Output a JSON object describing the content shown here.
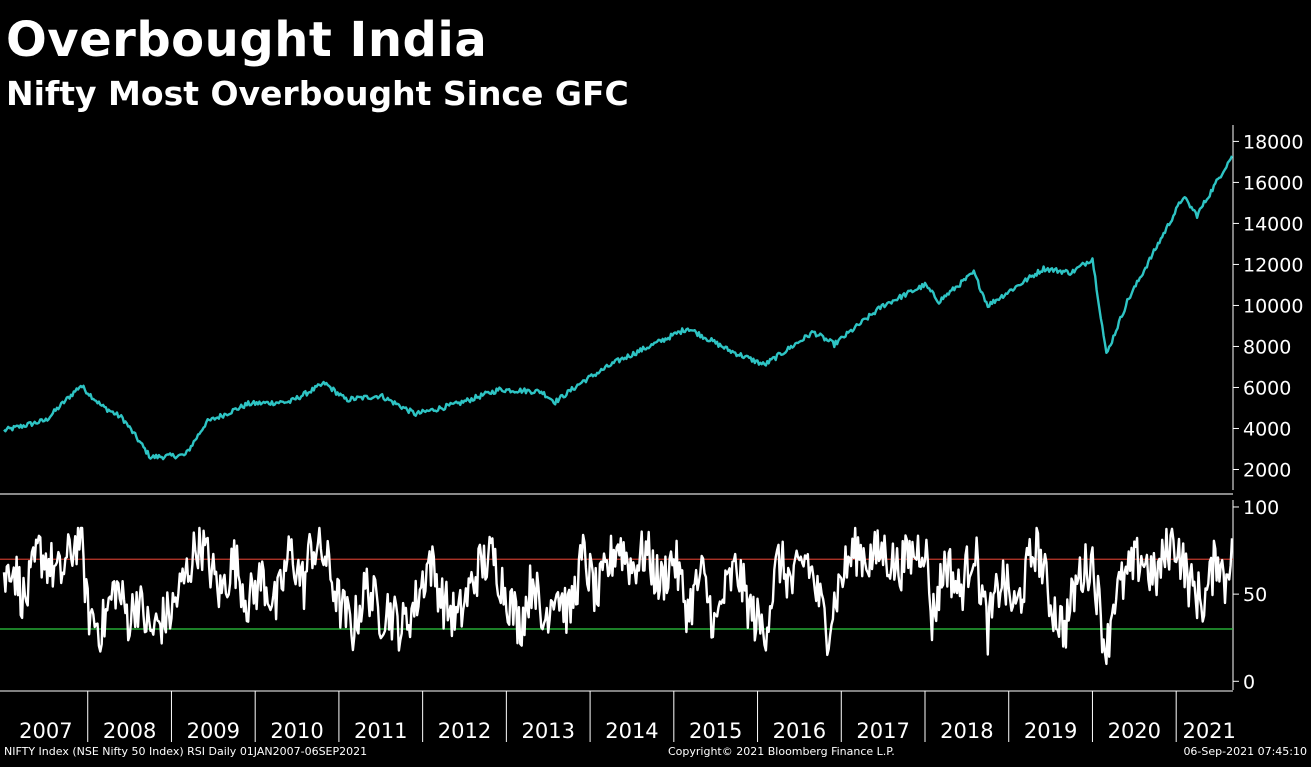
{
  "title": "Overbought India",
  "subtitle": "Nifty Most Overbought Since GFC",
  "footer": {
    "source": "NIFTY Index (NSE Nifty 50 Index) RSI  Daily 01JAN2007-06SEP2021",
    "copyright": "Copyright© 2021 Bloomberg Finance L.P.",
    "timestamp": "06-Sep-2021 07:45:10"
  },
  "colors": {
    "background": "#000000",
    "price_line": "#2ec4c4",
    "rsi_line": "#ffffff",
    "overbought_line": "#c0392b",
    "oversold_line": "#2ecc40",
    "axis": "#ffffff"
  },
  "chart_data": [
    {
      "type": "line",
      "series": [
        {
          "x": [
            "2007-01",
            "2007-07",
            "2007-12",
            "2008-03",
            "2008-06",
            "2008-10",
            "2009-03",
            "2009-06",
            "2009-12",
            "2010-06",
            "2010-11",
            "2011-02",
            "2011-07",
            "2011-12",
            "2012-06",
            "2012-12",
            "2013-06",
            "2013-08",
            "2013-12",
            "2014-05",
            "2014-12",
            "2015-03",
            "2015-09",
            "2016-02",
            "2016-09",
            "2016-12",
            "2017-07",
            "2018-01",
            "2018-03",
            "2018-08",
            "2018-10",
            "2019-06",
            "2019-10",
            "2020-01",
            "2020-03",
            "2020-06",
            "2020-12",
            "2021-02",
            "2021-04",
            "2021-09"
          ],
          "values": [
            3900,
            4400,
            6100,
            5100,
            4500,
            2600,
            2700,
            4300,
            5200,
            5300,
            6200,
            5400,
            5600,
            4700,
            5200,
            5900,
            5800,
            5300,
            6300,
            7300,
            8400,
            8900,
            7800,
            7100,
            8700,
            8100,
            10000,
            11000,
            10200,
            11600,
            10000,
            11800,
            11600,
            12300,
            7600,
            10200,
            14000,
            15300,
            14400,
            17300
          ]
        }
      ],
      "yticks": [
        2000,
        4000,
        6000,
        8000,
        10000,
        12000,
        14000,
        16000,
        18000
      ],
      "ylim": [
        1000,
        18800
      ]
    },
    {
      "type": "line",
      "series": [
        {
          "x": [
            "2007-01",
            "2007-02",
            "2007-04",
            "2007-06",
            "2007-09",
            "2007-12",
            "2008-01",
            "2008-03",
            "2008-05",
            "2008-07",
            "2008-08",
            "2008-10",
            "2009-01",
            "2009-03",
            "2009-05",
            "2009-06",
            "2009-08",
            "2009-10",
            "2009-12",
            "2010-02",
            "2010-04",
            "2010-06",
            "2010-08",
            "2010-09",
            "2010-11",
            "2011-01",
            "2011-03",
            "2011-05",
            "2011-07",
            "2011-08",
            "2011-10",
            "2011-12",
            "2012-02",
            "2012-04",
            "2012-06",
            "2012-09",
            "2012-11",
            "2013-01",
            "2013-03",
            "2013-05",
            "2013-06",
            "2013-08",
            "2013-10",
            "2013-12",
            "2014-02",
            "2014-04",
            "2014-05",
            "2014-07",
            "2014-09",
            "2014-11",
            "2015-01",
            "2015-03",
            "2015-05",
            "2015-07",
            "2015-08",
            "2015-10",
            "2015-12",
            "2016-02",
            "2016-04",
            "2016-06",
            "2016-08",
            "2016-11",
            "2017-01",
            "2017-03",
            "2017-05",
            "2017-07",
            "2017-09",
            "2017-11",
            "2018-01",
            "2018-02",
            "2018-04",
            "2018-06",
            "2018-08",
            "2018-10",
            "2018-12",
            "2019-02",
            "2019-04",
            "2019-05",
            "2019-07",
            "2019-09",
            "2019-11",
            "2020-01",
            "2020-03",
            "2020-04",
            "2020-06",
            "2020-08",
            "2020-10",
            "2020-12",
            "2021-01",
            "2021-03",
            "2021-05",
            "2021-07",
            "2021-08",
            "2021-09"
          ],
          "values": [
            55,
            70,
            45,
            75,
            60,
            86,
            40,
            30,
            55,
            35,
            48,
            28,
            40,
            60,
            82,
            72,
            50,
            70,
            45,
            60,
            42,
            75,
            55,
            78,
            72,
            45,
            30,
            55,
            38,
            42,
            30,
            45,
            70,
            45,
            35,
            65,
            72,
            50,
            32,
            62,
            30,
            55,
            38,
            72,
            48,
            70,
            80,
            65,
            75,
            55,
            72,
            40,
            62,
            30,
            48,
            65,
            40,
            28,
            70,
            55,
            72,
            30,
            60,
            76,
            70,
            75,
            65,
            72,
            80,
            35,
            70,
            50,
            78,
            30,
            60,
            40,
            68,
            80,
            45,
            30,
            60,
            70,
            15,
            48,
            60,
            72,
            58,
            78,
            80,
            55,
            45,
            75,
            55,
            82
          ]
        }
      ],
      "yticks": [
        0,
        50,
        100
      ],
      "ylim": [
        -5,
        104
      ],
      "reference_lines": [
        70,
        30
      ]
    }
  ],
  "x_axis": {
    "tick_labels": [
      "2007",
      "2008",
      "2009",
      "2010",
      "2011",
      "2012",
      "2013",
      "2014",
      "2015",
      "2016",
      "2017",
      "2018",
      "2019",
      "2020",
      "2021"
    ],
    "start": "2007-01",
    "end": "2021-09"
  }
}
